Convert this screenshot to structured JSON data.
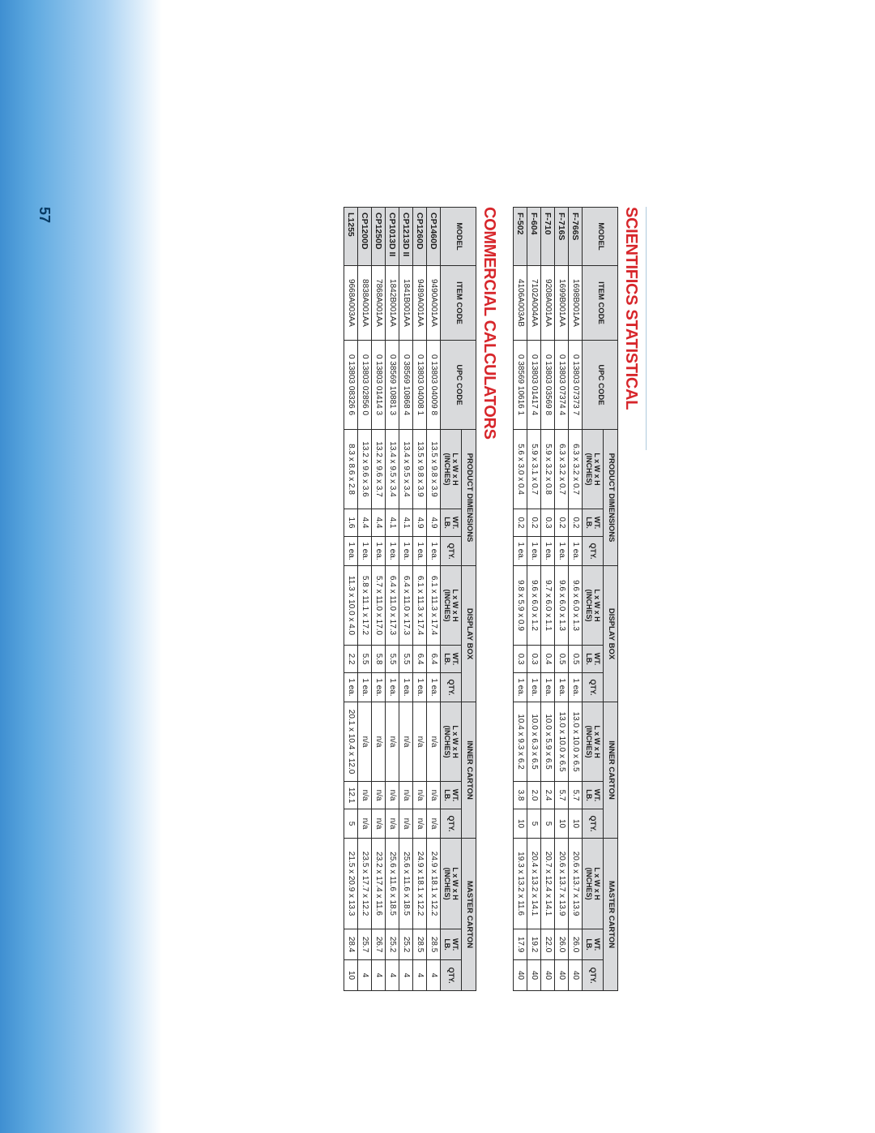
{
  "page_number": "57",
  "colors": {
    "title": "#d7262b",
    "header_bg": "#d9dadc",
    "border": "#2a2a2a",
    "gradient_top": "rgba(124,186,236,0)",
    "gradient_mid": "#5ea9e0",
    "gradient_bottom": "#3f8fd1",
    "pagenum": "#083a63"
  },
  "headers": {
    "model": "MODEL",
    "item_code": "ITEM CODE",
    "upc_code": "UPC CODE",
    "grp_product": "PRODUCT DIMENSIONS",
    "grp_display": "DISPLAY BOX",
    "grp_inner": "INNER CARTON",
    "grp_master": "MASTER CARTON",
    "dim": "L x W x H",
    "dim_sub": "(INCHES)",
    "wt": "WT.",
    "wt_sub": "LB.",
    "qty": "QTY."
  },
  "tables": [
    {
      "title": "SCIENTIFICS STATISTICAL",
      "rows": [
        {
          "model": "F-766S",
          "item": "1698B001AA",
          "upc": "0 13803 07373 7",
          "pd": "6.3 x 3.2 x 0.7",
          "pw": "0.2",
          "pq": "1 ea.",
          "dd": "9.6 x 6.0 x 1.3",
          "dw": "0.5",
          "dq": "1 ea.",
          "id": "13.0 x 10.0 x 6.5",
          "iw": "5.7",
          "iq": "10",
          "md": "20.6 x 13.7 x 13.9",
          "mw": "26.0",
          "mq": "40"
        },
        {
          "model": "F-716S",
          "item": "1699B001AA",
          "upc": "0 13803 07374 4",
          "pd": "6.3 x 3.2 x 0.7",
          "pw": "0.2",
          "pq": "1 ea.",
          "dd": "9.6 x 6.0 x 1.3",
          "dw": "0.5",
          "dq": "1 ea.",
          "id": "13.0 x 10.0 x 6.5",
          "iw": "5.7",
          "iq": "10",
          "md": "20.6 x 13.7 x 13.9",
          "mw": "26.0",
          "mq": "40"
        },
        {
          "model": "F-710",
          "item": "9208A001AA",
          "upc": "0 13803 03569 8",
          "pd": "5.9 x 3.2 x 0.8",
          "pw": "0.3",
          "pq": "1 ea.",
          "dd": "9.7 x 6.0 x 1.1",
          "dw": "0.4",
          "dq": "1 ea.",
          "id": "10.0 x 5.9 x 6.5",
          "iw": "2.4",
          "iq": "5",
          "md": "20.7 x 12.4 x 14.1",
          "mw": "22.0",
          "mq": "40"
        },
        {
          "model": "F-604",
          "item": "7102A004AA",
          "upc": "0 13803 01417 4",
          "pd": "5.9 x 3.1 x 0.7",
          "pw": "0.2",
          "pq": "1 ea.",
          "dd": "9.6 x 6.0 x 1.2",
          "dw": "0.3",
          "dq": "1 ea.",
          "id": "10.0 x 6.3 x 6.5",
          "iw": "2.0",
          "iq": "5",
          "md": "20.4 x 13.2 x 14.1",
          "mw": "19.2",
          "mq": "40"
        },
        {
          "model": "F-502",
          "item": "4106A003AB",
          "upc": "0 38569 10616 1",
          "pd": "5.6 x 3.0 x 0.4",
          "pw": "0.2",
          "pq": "1 ea.",
          "dd": "9.8 x 5.9 x 0.9",
          "dw": "0.3",
          "dq": "1 ea.",
          "id": "10.4 x 9.3 x 6.2",
          "iw": "3.8",
          "iq": "10",
          "md": "19.3 x 13.2 x 11.6",
          "mw": "17.9",
          "mq": "40"
        }
      ]
    },
    {
      "title": "COMMERCIAL CALCULATORS",
      "rows": [
        {
          "model": "CP1460D",
          "item": "9490A001AA",
          "upc": "0 13803 04009 8",
          "pd": "13.5 x 9.8 x 3.9",
          "pw": "4.9",
          "pq": "1 ea.",
          "dd": "6.1 x 11.3 x 17.4",
          "dw": "6.4",
          "dq": "1 ea.",
          "id": "n/a",
          "iw": "n/a",
          "iq": "n/a",
          "md": "24.9 x 18.1 x 12.2",
          "mw": "28.5",
          "mq": "4"
        },
        {
          "model": "CP1260D",
          "item": "9489A001AA",
          "upc": "0 13803 04008 1",
          "pd": "13.5 x 9.8 x 3.9",
          "pw": "4.9",
          "pq": "1 ea.",
          "dd": "6.1 x 11.3 x 17.4",
          "dw": "6.4",
          "dq": "1 ea.",
          "id": "n/a",
          "iw": "n/a",
          "iq": "n/a",
          "md": "24.9 x 18.1 x 12.2",
          "mw": "28.5",
          "mq": "4"
        },
        {
          "model": "CP1213D II",
          "item": "1841B001AA",
          "upc": "0 38569 10868 4",
          "pd": "13.4 x 9.5 x 3.4",
          "pw": "4.1",
          "pq": "1 ea.",
          "dd": "6.4 x 11.0 x 17.3",
          "dw": "5.5",
          "dq": "1 ea.",
          "id": "n/a",
          "iw": "n/a",
          "iq": "n/a",
          "md": "25.6 x 11.6 x 18.5",
          "mw": "25.2",
          "mq": "4"
        },
        {
          "model": "CP1013D II",
          "item": "1842B001AA",
          "upc": "0 38569 10881 3",
          "pd": "13.4 x 9.5 x 3.4",
          "pw": "4.1",
          "pq": "1 ea.",
          "dd": "6.4 x 11.0 x 17.3",
          "dw": "5.5",
          "dq": "1 ea.",
          "id": "n/a",
          "iw": "n/a",
          "iq": "n/a",
          "md": "25.6 x 11.6 x 18.5",
          "mw": "25.2",
          "mq": "4"
        },
        {
          "model": "CP1250D",
          "item": "7868A001AA",
          "upc": "0 13803 01414 3",
          "pd": "13.2 x 9.6 x 3.7",
          "pw": "4.4",
          "pq": "1 ea.",
          "dd": "5.7 x 11.0 x 17.0",
          "dw": "5.8",
          "dq": "1 ea.",
          "id": "n/a",
          "iw": "n/a",
          "iq": "n/a",
          "md": "23.2 x 17.4 x 11.6",
          "mw": "26.7",
          "mq": "4"
        },
        {
          "model": "CP1200D",
          "item": "8838A001AA",
          "upc": "0 13803 02856 0",
          "pd": "13.2 x 9.6 x 3.6",
          "pw": "4.4",
          "pq": "1 ea.",
          "dd": "5.8 x 11.1 x 17.2",
          "dw": "5.5",
          "dq": "1 ea.",
          "id": "n/a",
          "iw": "n/a",
          "iq": "n/a",
          "md": "23.5 x 17.7 x 12.2",
          "mw": "25.7",
          "mq": "4"
        },
        {
          "model": "L1255",
          "item": "9668A003AA",
          "upc": "0 13803 08326 6",
          "pd": "8.3 x 8.6 x 2.8",
          "pw": "1.6",
          "pq": "1 ea.",
          "dd": "11.3 x 10.0 x 4.0",
          "dw": "2.2",
          "dq": "1 ea.",
          "id": "20.1 x 10.4 x 12.0",
          "iw": "12.1",
          "iq": "5",
          "md": "21.5 x 20.9 x 13.3",
          "mw": "28.4",
          "mq": "10"
        }
      ]
    }
  ]
}
